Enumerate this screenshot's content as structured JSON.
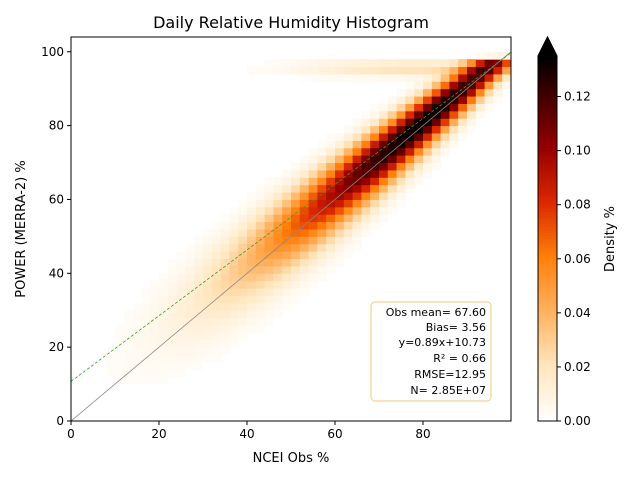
{
  "chart_data": {
    "type": "heatmap",
    "title": "Daily Relative Humidity Histogram",
    "xlabel": "NCEI Obs %",
    "ylabel": "POWER (MERRA-2) %",
    "xlim": [
      0,
      100
    ],
    "ylim": [
      0,
      104
    ],
    "xticks": [
      "0",
      "20",
      "40",
      "60",
      "80"
    ],
    "yticks": [
      "0",
      "20",
      "40",
      "60",
      "80",
      "100"
    ],
    "grid": false,
    "regression_line": {
      "slope": 0.89,
      "intercept": 10.73,
      "color": "#2ca02c",
      "style": "dashed"
    },
    "identity_line": {
      "slope": 1,
      "intercept": 0,
      "color": "#888888"
    },
    "density_peak": {
      "x": 80,
      "y": 82
    },
    "colorbar": {
      "label": "Density %",
      "colormap": "gist_heat_r",
      "range": [
        0,
        0.135
      ],
      "ticks": [
        "0.00",
        "0.02",
        "0.04",
        "0.06",
        "0.08",
        "0.10",
        "0.12"
      ],
      "extend": "max"
    },
    "stats_box": {
      "lines": [
        "Obs mean= 67.60",
        "Bias= 3.56",
        "y=0.89x+10.73",
        "R² = 0.66",
        "RMSE=12.95",
        "N= 2.85E+07"
      ],
      "placement": "bottom-right",
      "border_color": "#f5c77a"
    }
  }
}
